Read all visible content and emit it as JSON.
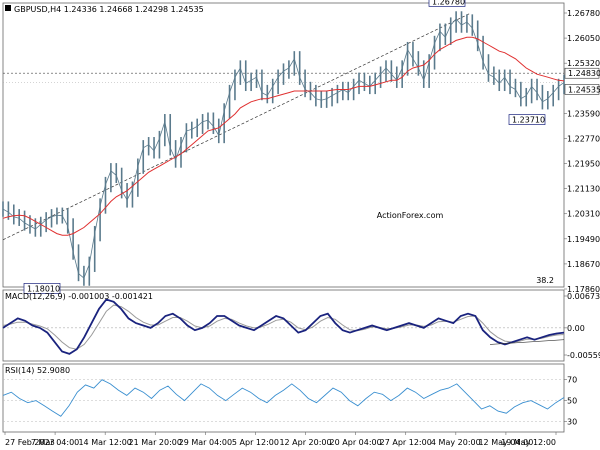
{
  "chart_data": [
    {
      "type": "line",
      "name": "price",
      "title": "GBPUSD,H4  1.24336  1.24668  1.24298  1.24535",
      "watermark": "ActionForex.com",
      "ylim": [
        1.1786,
        1.2712
      ],
      "y_ticks": [
        "1.26780",
        "1.26050",
        "1.25320",
        "1.24535",
        "1.23590",
        "1.22770",
        "1.21950",
        "1.21130",
        "1.20310",
        "1.19490",
        "1.18670",
        "1.17860"
      ],
      "label_current": "1.24535",
      "label_level": "1.24830",
      "level_value": 1.2483,
      "annotations": [
        {
          "text": "1.26780",
          "x": "4 May 20:00",
          "y": 1.2678
        },
        {
          "text": "1.23710",
          "x": "16 May 12:00",
          "y": 1.2371
        },
        {
          "text": "1.18010",
          "x": "7 Mar 04:00",
          "y": 1.1801
        }
      ],
      "fib_label": "38.2",
      "colors": {
        "price": "#5a7a8c",
        "ma": "#e03030",
        "trend": "#333333"
      },
      "series": [
        {
          "role": "price",
          "values": [
            1.204,
            1.203,
            1.2015,
            1.201,
            1.1995,
            1.1985,
            1.1975,
            1.199,
            1.2005,
            1.2015,
            1.202,
            1.2018,
            1.1985,
            1.19,
            1.183,
            1.1815,
            1.186,
            1.196,
            1.205,
            1.212,
            1.2165,
            1.215,
            1.21,
            1.207,
            1.2105,
            1.218,
            1.224,
            1.225,
            1.223,
            1.227,
            1.2325,
            1.224,
            1.22,
            1.225,
            1.2295,
            1.23,
            1.231,
            1.2325,
            1.233,
            1.231,
            1.228,
            1.236,
            1.242,
            1.247,
            1.25,
            1.245,
            1.246,
            1.247,
            1.242,
            1.241,
            1.244,
            1.247,
            1.249,
            1.25,
            1.253,
            1.247,
            1.243,
            1.242,
            1.24,
            1.2395,
            1.24,
            1.241,
            1.242,
            1.243,
            1.242,
            1.244,
            1.246,
            1.245,
            1.244,
            1.246,
            1.248,
            1.25,
            1.248,
            1.246,
            1.25,
            1.256,
            1.253,
            1.25,
            1.246,
            1.252,
            1.258,
            1.262,
            1.26,
            1.264,
            1.266,
            1.264,
            1.265,
            1.263,
            1.258,
            1.252,
            1.248,
            1.247,
            1.245,
            1.247,
            1.244,
            1.243,
            1.24,
            1.241,
            1.244,
            1.242,
            1.239,
            1.24,
            1.242,
            1.244,
            1.2453
          ]
        },
        {
          "role": "ma",
          "values": [
            1.201,
            1.2015,
            1.2018,
            1.202,
            1.2018,
            1.201,
            1.2,
            1.199,
            1.198,
            1.197,
            1.196,
            1.1955,
            1.1955,
            1.196,
            1.197,
            1.198,
            1.1995,
            1.201,
            1.2025,
            1.2045,
            1.2065,
            1.208,
            1.209,
            1.21,
            1.2115,
            1.213,
            1.2145,
            1.216,
            1.217,
            1.218,
            1.219,
            1.22,
            1.221,
            1.222,
            1.2235,
            1.225,
            1.2265,
            1.228,
            1.2295,
            1.23,
            1.2305,
            1.232,
            1.2335,
            1.235,
            1.237,
            1.238,
            1.239,
            1.2395,
            1.24,
            1.24,
            1.2405,
            1.241,
            1.2415,
            1.242,
            1.2425,
            1.2425,
            1.2425,
            1.2425,
            1.2425,
            1.2425,
            1.2425,
            1.2428,
            1.243,
            1.243,
            1.243,
            1.2435,
            1.244,
            1.244,
            1.244,
            1.2445,
            1.245,
            1.2455,
            1.246,
            1.246,
            1.247,
            1.249,
            1.25,
            1.2505,
            1.251,
            1.2525,
            1.2545,
            1.256,
            1.257,
            1.258,
            1.259,
            1.2595,
            1.26,
            1.26,
            1.2595,
            1.2585,
            1.2575,
            1.2565,
            1.2555,
            1.255,
            1.254,
            1.253,
            1.2515,
            1.25,
            1.249,
            1.248,
            1.2475,
            1.247,
            1.2465,
            1.246,
            1.2458
          ]
        }
      ]
    },
    {
      "type": "line",
      "name": "macd",
      "title": "MACD(12,26,9) -0.001003 -0.001421",
      "ylim": [
        -0.007,
        0.008
      ],
      "y_ticks": [
        "0.006731",
        "0.00",
        "-0.005595"
      ],
      "series": [
        {
          "role": "macd",
          "values": [
            0.0,
            0.001,
            0.002,
            0.0015,
            0.0005,
            0.0,
            -0.001,
            -0.003,
            -0.005,
            -0.0055,
            -0.0045,
            -0.002,
            0.001,
            0.004,
            0.006,
            0.0055,
            0.004,
            0.002,
            0.001,
            0.0005,
            0.0,
            0.001,
            0.0025,
            0.003,
            0.002,
            0.0005,
            -0.0005,
            0.0,
            0.001,
            0.0025,
            0.0025,
            0.0015,
            0.0005,
            0.0,
            -0.0005,
            0.0005,
            0.0015,
            0.0025,
            0.002,
            0.0005,
            -0.001,
            -0.0005,
            0.001,
            0.0025,
            0.003,
            0.001,
            -0.0005,
            -0.001,
            -0.0005,
            0.0,
            0.0005,
            0.0,
            -0.0005,
            0.0,
            0.0005,
            0.001,
            0.0005,
            0.0,
            0.001,
            0.002,
            0.0015,
            0.001,
            0.0025,
            0.003,
            0.0025,
            -0.0005,
            -0.002,
            -0.003,
            -0.0035,
            -0.003,
            -0.0025,
            -0.002,
            -0.0025,
            -0.002,
            -0.0015,
            -0.0012,
            -0.001
          ]
        },
        {
          "role": "signal",
          "values": [
            0.0005,
            0.0008,
            0.0012,
            0.0012,
            0.0008,
            0.0004,
            -0.0002,
            -0.0015,
            -0.003,
            -0.0042,
            -0.0045,
            -0.0035,
            -0.0015,
            0.001,
            0.0035,
            0.0048,
            0.0045,
            0.0035,
            0.0022,
            0.0012,
            0.0006,
            0.0006,
            0.0014,
            0.0022,
            0.0022,
            0.0014,
            0.0004,
            0.0,
            0.0004,
            0.0014,
            0.002,
            0.0018,
            0.001,
            0.0004,
            0.0,
            0.0002,
            0.0008,
            0.0016,
            0.0018,
            0.0012,
            0.0,
            -0.0004,
            0.0002,
            0.0014,
            0.0022,
            0.0018,
            0.0006,
            -0.0004,
            -0.0006,
            -0.0003,
            0.0002,
            0.0001,
            -0.0002,
            -0.0001,
            0.0002,
            0.0006,
            0.0006,
            0.0003,
            0.0006,
            0.0013,
            0.0014,
            0.0012,
            0.0018,
            0.0024,
            0.0025,
            0.001,
            -0.0008,
            -0.002,
            -0.0028,
            -0.003,
            -0.0028,
            -0.0024,
            -0.0024,
            -0.0022,
            -0.0018,
            -0.0015,
            -0.0014
          ]
        }
      ]
    },
    {
      "type": "line",
      "name": "rsi",
      "title": "RSI(14) 52.9080",
      "ylim": [
        20,
        85
      ],
      "y_ticks": [
        "70",
        "50",
        "30"
      ],
      "x_labels": [
        "27 Feb 2023",
        "7 Mar 04:00",
        "14 Mar 12:00",
        "21 Mar 20:00",
        "29 Mar 04:00",
        "5 Apr 12:00",
        "12 Apr 20:00",
        "20 Apr 04:00",
        "27 Apr 12:00",
        "4 May 20:00",
        "12 May 04:00",
        "19 May 12:00"
      ],
      "series": [
        {
          "role": "rsi",
          "values": [
            55,
            58,
            52,
            48,
            50,
            45,
            40,
            35,
            45,
            58,
            65,
            62,
            70,
            66,
            60,
            55,
            62,
            58,
            52,
            60,
            64,
            56,
            50,
            58,
            66,
            62,
            55,
            50,
            56,
            62,
            58,
            52,
            48,
            55,
            60,
            66,
            60,
            52,
            48,
            55,
            62,
            58,
            50,
            45,
            52,
            58,
            56,
            50,
            55,
            62,
            58,
            52,
            56,
            60,
            62,
            66,
            58,
            50,
            42,
            45,
            40,
            38,
            44,
            48,
            50,
            46,
            42,
            48,
            53
          ]
        }
      ]
    }
  ]
}
